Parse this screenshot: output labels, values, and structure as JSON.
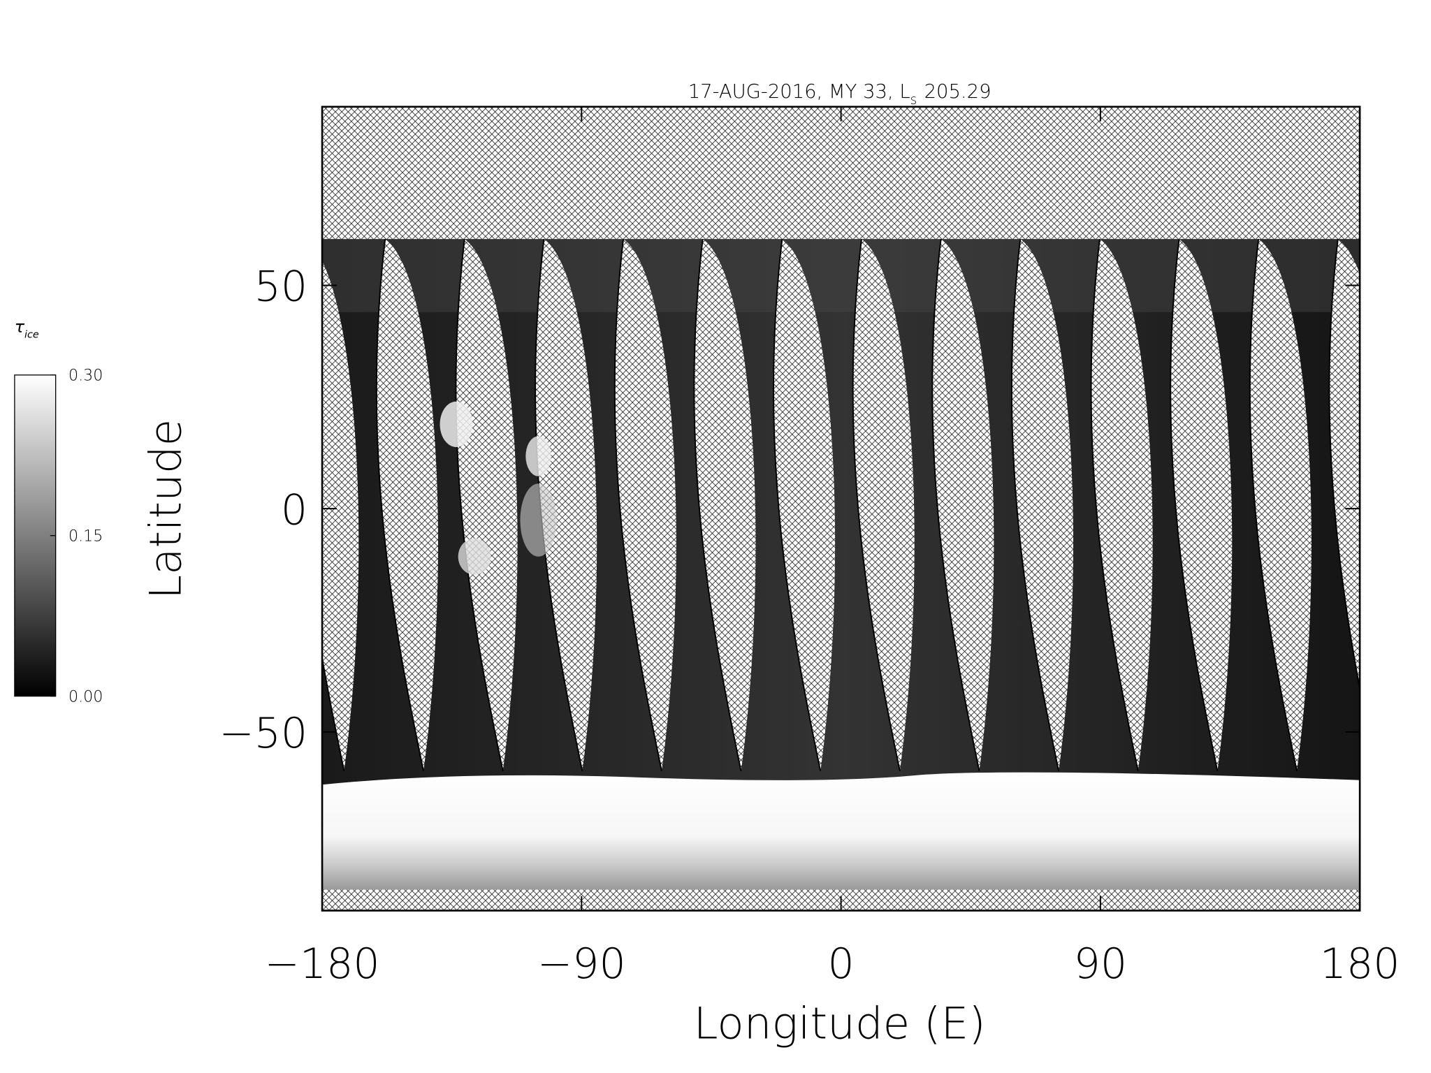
{
  "chart_data": {
    "type": "map",
    "title": "17-AUG-2016, MY 33,  L",
    "title_subscript": "s",
    "title_suffix": "205.29",
    "xlabel": "Longitude (E)",
    "ylabel": "Latitude",
    "xlim": [
      -180,
      180
    ],
    "xticks": [
      {
        "value": -180,
        "label": "−180"
      },
      {
        "value": -90,
        "label": "−90"
      },
      0,
      90,
      180
    ],
    "ylim": [
      -90,
      90
    ],
    "yticks": [
      {
        "value": -50,
        "label": "−50"
      },
      0,
      50
    ],
    "colorbar": {
      "label": "τ",
      "label_subscript": "ice",
      "lim": [
        0,
        0.3
      ],
      "ticks": [
        {
          "value": 0,
          "label": "0.00"
        },
        {
          "value": 0.15,
          "label": "0.15"
        },
        {
          "value": 0.3,
          "label": "0.30"
        }
      ]
    }
  }
}
